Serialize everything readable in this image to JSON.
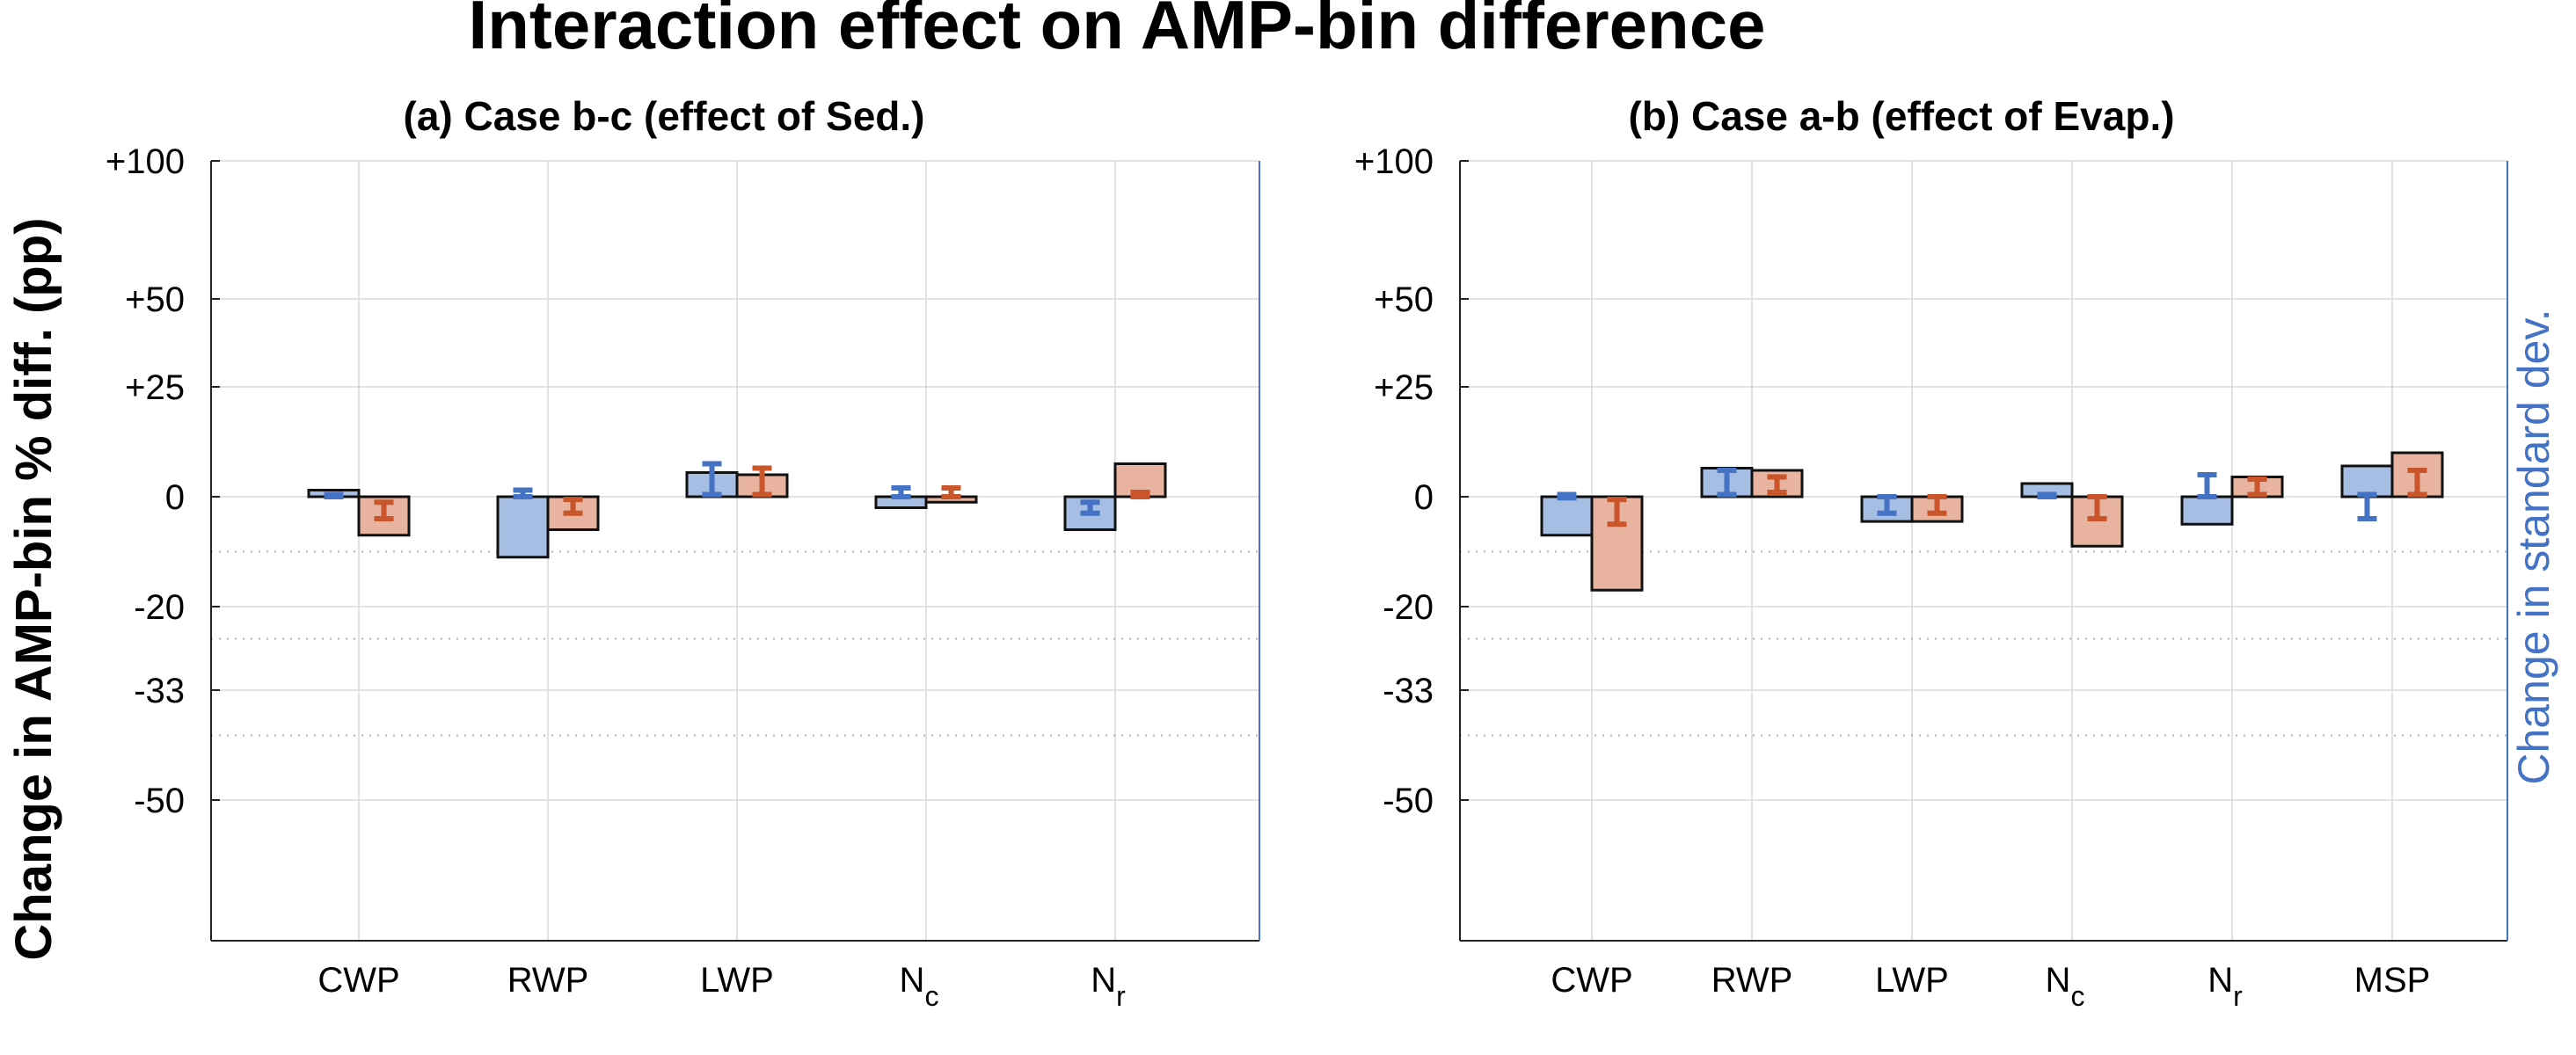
{
  "chart_data": {
    "type": "bar",
    "title": "Interaction effect on AMP-bin difference",
    "ylabel": "Change in AMP-bin % diff. (pp)",
    "ylabel_right": "Change in standard dev.",
    "y_scale": "symmetric nonlinear (pseudo-log)",
    "ylim": [
      -70,
      100
    ],
    "yticks": [
      "+100",
      "+50",
      "+25",
      "0",
      "-20",
      "-33",
      "-50"
    ],
    "reference_lines": [
      -10,
      -25,
      -40
    ],
    "grid": true,
    "colors": {
      "blue_bar": "#a6bde4",
      "orange_bar": "#e8b39f",
      "blue_err": "#4472c4",
      "orange_err": "#c8562a",
      "right_axis": "#4472c4"
    },
    "panels": [
      {
        "title": "(a) Case b-c (effect of Sed.)",
        "categories": [
          {
            "main": "CWP",
            "sub": ""
          },
          {
            "main": "RWP",
            "sub": ""
          },
          {
            "main": "LWP",
            "sub": ""
          },
          {
            "main": "N",
            "sub": "c"
          },
          {
            "main": "N",
            "sub": "r"
          }
        ],
        "series": [
          {
            "values": [
              1.5,
              -11,
              5.5,
              -2,
              -6
            ],
            "err_low": [
              0,
              0,
              0.5,
              0,
              -3
            ],
            "err_high": [
              0.5,
              1.5,
              7.5,
              2,
              -1
            ]
          },
          {
            "values": [
              -7,
              -6,
              5,
              -1,
              7.5
            ],
            "err_low": [
              -4,
              -3,
              0.5,
              0,
              0
            ],
            "err_high": [
              -1,
              -0.5,
              6.5,
              2,
              1
            ]
          }
        ]
      },
      {
        "title": "(b) Case a-b (effect of Evap.)",
        "categories": [
          {
            "main": "CWP",
            "sub": ""
          },
          {
            "main": "RWP",
            "sub": ""
          },
          {
            "main": "LWP",
            "sub": ""
          },
          {
            "main": "N",
            "sub": "c"
          },
          {
            "main": "N",
            "sub": "r"
          },
          {
            "main": "MSP",
            "sub": ""
          }
        ],
        "series": [
          {
            "values": [
              -7,
              6.5,
              -4.5,
              3,
              -5,
              7
            ],
            "err_low": [
              -0.2,
              0.5,
              -3,
              0,
              0,
              -4
            ],
            "err_high": [
              0.5,
              6,
              0,
              0.5,
              5,
              0.5
            ]
          },
          {
            "values": [
              -17,
              6,
              -4.5,
              -9,
              4.5,
              10
            ],
            "err_low": [
              -5,
              1,
              -3,
              -4,
              0.5,
              0.5
            ],
            "err_high": [
              -0.5,
              4.5,
              0,
              0,
              4,
              6
            ]
          }
        ]
      }
    ]
  }
}
